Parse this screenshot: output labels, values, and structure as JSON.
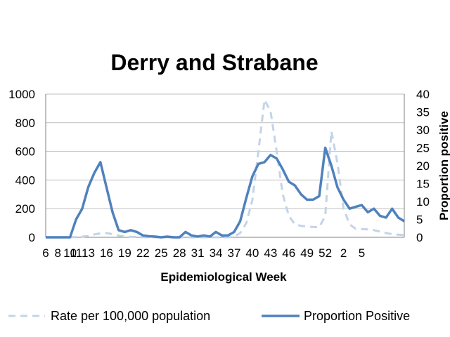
{
  "chart_data": {
    "type": "line",
    "title": "Derry and Strabane",
    "xlabel": "Epidemiological Week",
    "ylabel": "",
    "y2label": "Proportion positive",
    "ylim": [
      0,
      1000
    ],
    "y2lim": [
      0,
      40
    ],
    "yticks": [
      "0",
      "200",
      "400",
      "600",
      "800",
      "1000"
    ],
    "y2ticks": [
      "0",
      "5",
      "10",
      "15",
      "20",
      "25",
      "30",
      "35",
      "40"
    ],
    "x_tick_labels": [
      "6",
      "10",
      "13",
      "16",
      "19",
      "22",
      "25",
      "28",
      "31",
      "34",
      "37",
      "40",
      "43",
      "46",
      "49",
      "52",
      "2",
      "5",
      "8",
      "11"
    ],
    "grid": true,
    "legend_position": "bottom",
    "colors": {
      "solid": "#4f81bd",
      "dashed": "#c3d4e9",
      "grid": "#bfbfbf",
      "axis": "#808080"
    },
    "weeks": [
      "6",
      "7",
      "8",
      "9",
      "10",
      "11",
      "12",
      "13",
      "14",
      "15",
      "16",
      "17",
      "18",
      "19",
      "20",
      "21",
      "22",
      "23",
      "24",
      "25",
      "26",
      "27",
      "28",
      "29",
      "30",
      "31",
      "32",
      "33",
      "34",
      "35",
      "36",
      "37",
      "38",
      "39",
      "40",
      "41",
      "42",
      "43",
      "44",
      "45",
      "46",
      "47",
      "48",
      "49",
      "50",
      "51",
      "52",
      "53",
      "1",
      "2",
      "3",
      "4",
      "5",
      "6",
      "7",
      "8",
      "9",
      "10",
      "11",
      "12"
    ],
    "series": [
      {
        "name": "Rate per 100,000 population",
        "axis": "left",
        "style": "dashed",
        "values": [
          0,
          0,
          0,
          0,
          0,
          2,
          5,
          10,
          20,
          28,
          30,
          22,
          12,
          6,
          3,
          2,
          1,
          0,
          0,
          0,
          0,
          0,
          0,
          0,
          0,
          0,
          0,
          0,
          0,
          0,
          0,
          5,
          30,
          100,
          260,
          600,
          960,
          880,
          600,
          300,
          150,
          90,
          80,
          75,
          72,
          70,
          150,
          740,
          520,
          200,
          90,
          60,
          58,
          55,
          50,
          40,
          30,
          22,
          18,
          15
        ]
      },
      {
        "name": "Proportion Positive",
        "axis": "right",
        "style": "solid",
        "values": [
          0,
          0,
          0,
          0,
          0,
          5,
          8,
          14,
          18,
          21,
          14,
          7,
          2,
          1.5,
          2,
          1.5,
          0.5,
          0.3,
          0.2,
          0,
          0.2,
          0,
          0,
          1.5,
          0.5,
          0.2,
          0.5,
          0.2,
          1.5,
          0.5,
          0.5,
          1.5,
          4.5,
          11,
          17,
          20.5,
          21,
          23,
          22,
          19,
          15.5,
          14.5,
          12,
          10.5,
          10.5,
          11.5,
          25,
          20,
          14,
          10.5,
          8,
          8.5,
          9,
          7,
          8,
          6,
          5.5,
          8,
          5.5,
          4.5
        ]
      }
    ]
  }
}
